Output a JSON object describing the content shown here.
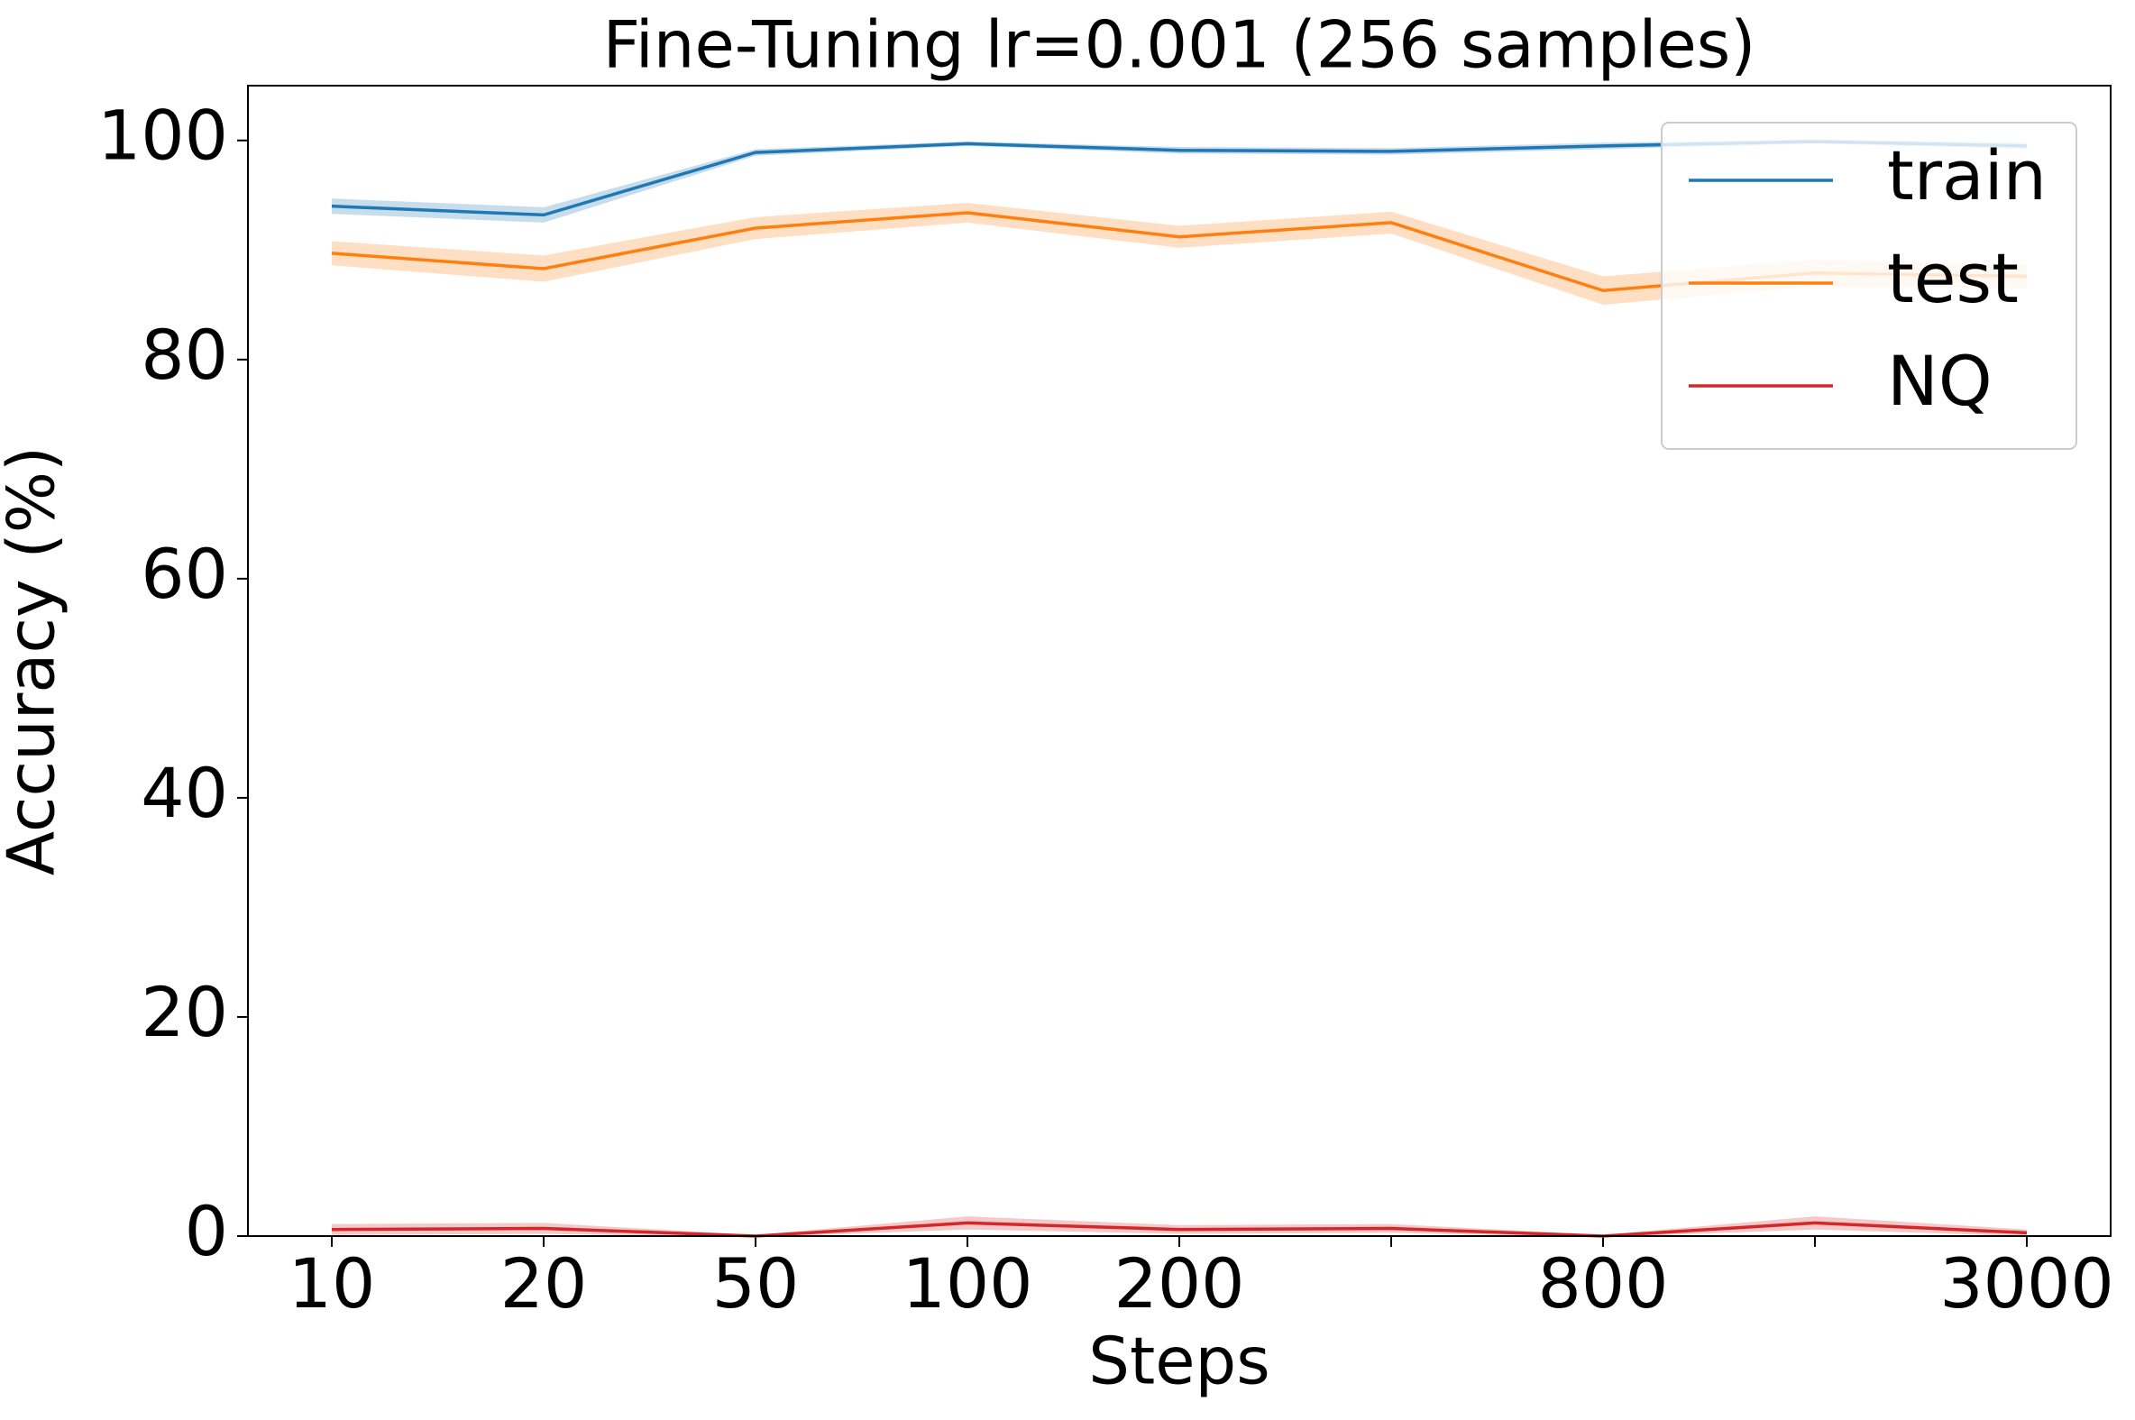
{
  "chart_data": {
    "type": "line",
    "title": "Fine-Tuning lr=0.001  (256 samples)",
    "x_label": "Steps",
    "y_label": "Accuracy (%)",
    "categories": [
      "10",
      "20",
      "50",
      "100",
      "200",
      null,
      "800",
      null,
      "3000"
    ],
    "series": [
      {
        "name": "train",
        "color": "#1f77b4",
        "values": [
          94.0,
          93.2,
          98.9,
          99.7,
          99.1,
          99.0,
          99.5,
          99.9,
          99.5
        ],
        "errors": [
          0.7,
          0.7,
          0.3,
          0.2,
          0.3,
          0.3,
          0.3,
          0.2,
          0.3
        ]
      },
      {
        "name": "test",
        "color": "#ff7f0e",
        "values": [
          89.7,
          88.3,
          92.0,
          93.4,
          91.2,
          92.5,
          86.3,
          87.9,
          87.6
        ],
        "errors": [
          1.1,
          1.2,
          1.0,
          0.9,
          1.0,
          1.0,
          1.3,
          1.2,
          1.1
        ]
      },
      {
        "name": "NQ",
        "color": "#d62728",
        "values": [
          0.6,
          0.7,
          0.0,
          1.2,
          0.6,
          0.7,
          0.0,
          1.2,
          0.3
        ],
        "errors": [
          0.5,
          0.5,
          0.1,
          0.6,
          0.4,
          0.4,
          0.1,
          0.6,
          0.3
        ]
      }
    ],
    "ylim": [
      0,
      105
    ],
    "yticks": [
      0,
      20,
      40,
      60,
      80,
      100
    ],
    "legend": "upper right",
    "grid": false
  }
}
